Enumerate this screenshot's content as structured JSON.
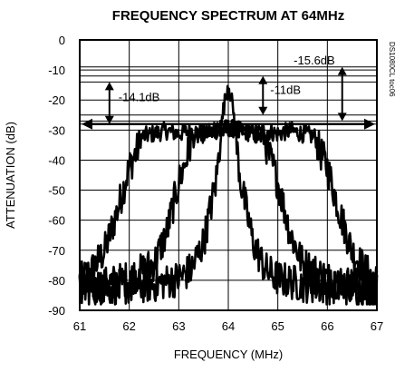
{
  "chart_data": {
    "type": "line",
    "title": "FREQUENCY SPECTRUM AT 64MHz",
    "xlabel": "FREQUENCY (MHz)",
    "ylabel": "ATTENUATION (dB)",
    "xlim": [
      61,
      67
    ],
    "ylim": [
      -90,
      0
    ],
    "xticks": [
      "61",
      "62",
      "63",
      "64",
      "65",
      "66",
      "67"
    ],
    "yticks": [
      "0",
      "-10",
      "-20",
      "-30",
      "-40",
      "-50",
      "-60",
      "-70",
      "-80",
      "-90"
    ],
    "grid": true,
    "figure_code": "DS1080CL toc06",
    "annotations": [
      {
        "text": "-14.1dB",
        "x": 61.6,
        "y1": -14,
        "y2": -28
      },
      {
        "text": "-11dB",
        "x": 64.7,
        "y1": -12,
        "y2": -25
      },
      {
        "text": "-15.6dB",
        "x": 66.3,
        "y1": -9,
        "y2": -27
      }
    ],
    "series": [
      {
        "x": [
          61.0,
          61.25,
          61.5,
          61.75,
          62.0,
          62.25,
          62.5,
          62.75,
          63.0,
          63.25,
          63.5,
          63.75,
          64.0,
          64.25,
          64.5,
          64.75,
          65.0,
          65.25,
          65.5,
          65.75,
          66.0,
          66.25,
          66.5,
          66.75,
          67.0
        ],
        "values": [
          -78,
          -74,
          -68,
          -55,
          -40,
          -31,
          -30,
          -29,
          -30,
          -29,
          -30,
          -29,
          -28,
          -29,
          -30,
          -29,
          -30,
          -29,
          -30,
          -31,
          -40,
          -55,
          -68,
          -74,
          -78
        ]
      },
      {
        "x": [
          61.0,
          61.5,
          62.0,
          62.5,
          62.75,
          63.0,
          63.25,
          63.5,
          63.75,
          64.0,
          64.25,
          64.5,
          64.75,
          65.0,
          65.25,
          65.5,
          66.0,
          66.5,
          67.0
        ],
        "values": [
          -80,
          -79,
          -77,
          -72,
          -62,
          -45,
          -32,
          -30,
          -29,
          -28,
          -29,
          -30,
          -32,
          -45,
          -62,
          -72,
          -77,
          -79,
          -80
        ]
      },
      {
        "x": [
          61.0,
          61.5,
          62.0,
          62.5,
          63.0,
          63.25,
          63.5,
          63.75,
          63.9,
          64.0,
          64.1,
          64.25,
          64.5,
          64.75,
          65.0,
          65.5,
          66.0,
          66.5,
          67.0
        ],
        "values": [
          -81,
          -80,
          -80,
          -79,
          -77,
          -74,
          -65,
          -45,
          -22,
          -13,
          -22,
          -45,
          -65,
          -74,
          -77,
          -79,
          -80,
          -80,
          -81
        ]
      }
    ]
  }
}
